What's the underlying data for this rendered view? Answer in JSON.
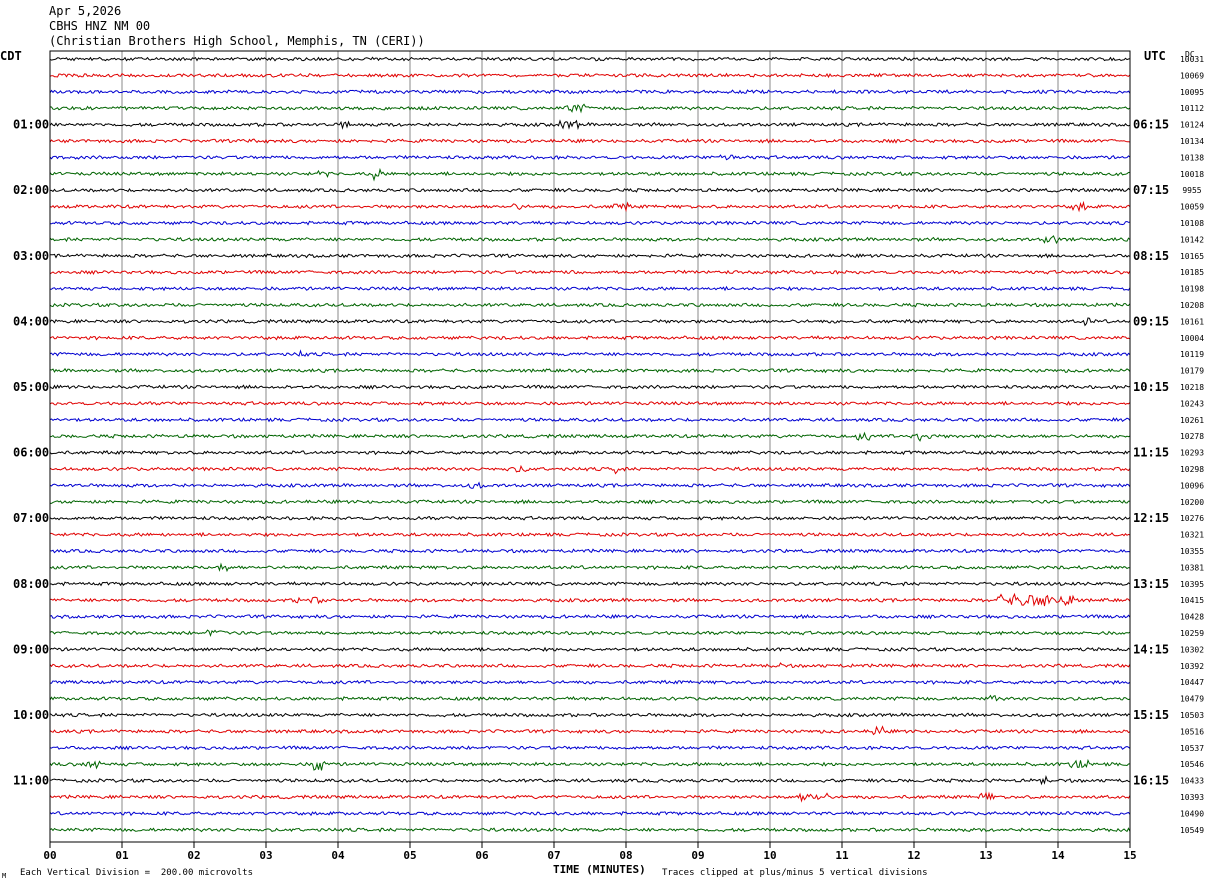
{
  "header": {
    "date": "Apr 5,2026",
    "station": "CBHS HNZ NM 00",
    "location": "(Christian Brothers High School, Memphis, TN (CERI))"
  },
  "axes": {
    "left_tz": "CDT",
    "right_tz": "UTC",
    "dc_label": "DC",
    "x_label": "TIME (MINUTES)"
  },
  "footer": {
    "scale_note": "Each Vertical Division =  200.00 microvolts",
    "clip_note": "Traces clipped at plus/minus 5 vertical divisions",
    "corner_mark": "M"
  },
  "colors": {
    "cycle": [
      "#000000",
      "#e00000",
      "#0000d0",
      "#006400"
    ],
    "grid": "#888888"
  },
  "chart_data": {
    "type": "line",
    "title": "",
    "xlabel": "TIME (MINUTES)",
    "xlim": [
      0,
      15
    ],
    "x_ticks": [
      "00",
      "01",
      "02",
      "03",
      "04",
      "05",
      "06",
      "07",
      "08",
      "09",
      "10",
      "11",
      "12",
      "13",
      "14",
      "15"
    ],
    "left_hour_labels": [
      "01:00",
      "02:00",
      "03:00",
      "04:00",
      "05:00",
      "06:00",
      "07:00",
      "08:00",
      "09:00",
      "10:00",
      "11:00"
    ],
    "right_hour_labels": [
      "06:15",
      "07:15",
      "08:15",
      "09:15",
      "10:15",
      "11:15",
      "12:15",
      "13:15",
      "14:15",
      "15:15",
      "16:15"
    ],
    "traces": 48,
    "minutes_per_trace": 15,
    "dc_offsets": [
      10031,
      10069,
      10095,
      10112,
      10124,
      10134,
      10138,
      10018,
      9955,
      10059,
      10108,
      10142,
      10165,
      10185,
      10198,
      10208,
      10161,
      10004,
      10119,
      10179,
      10218,
      10243,
      10261,
      10278,
      10293,
      10298,
      10096,
      10200,
      10276,
      10321,
      10355,
      10381,
      10395,
      10415,
      10428,
      10259,
      10302,
      10392,
      10447,
      10479,
      10503,
      10516,
      10537,
      10546,
      10433,
      10393,
      10490,
      10549
    ],
    "events": [
      {
        "trace": 3,
        "minute": 7.3,
        "amp": 4,
        "dur": 0.3
      },
      {
        "trace": 4,
        "minute": 4.1,
        "amp": 4,
        "dur": 0.15
      },
      {
        "trace": 4,
        "minute": 7.2,
        "amp": 4,
        "dur": 0.3
      },
      {
        "trace": 5,
        "minute": 2.8,
        "amp": 3,
        "dur": 0.1
      },
      {
        "trace": 6,
        "minute": 9.4,
        "amp": 4,
        "dur": 0.2
      },
      {
        "trace": 7,
        "minute": 3.8,
        "amp": 3,
        "dur": 0.15
      },
      {
        "trace": 7,
        "minute": 4.55,
        "amp": 6,
        "dur": 0.15
      },
      {
        "trace": 9,
        "minute": 6.5,
        "amp": 3,
        "dur": 0.2
      },
      {
        "trace": 9,
        "minute": 7.9,
        "amp": 4,
        "dur": 0.25
      },
      {
        "trace": 9,
        "minute": 14.3,
        "amp": 4,
        "dur": 0.2
      },
      {
        "trace": 11,
        "minute": 13.9,
        "amp": 4,
        "dur": 0.2
      },
      {
        "trace": 13,
        "minute": 7.3,
        "amp": 3,
        "dur": 0.1
      },
      {
        "trace": 16,
        "minute": 14.4,
        "amp": 6,
        "dur": 0.08
      },
      {
        "trace": 18,
        "minute": 3.5,
        "amp": 4,
        "dur": 0.1
      },
      {
        "trace": 23,
        "minute": 11.3,
        "amp": 4,
        "dur": 0.2
      },
      {
        "trace": 23,
        "minute": 12.1,
        "amp": 5,
        "dur": 0.3
      },
      {
        "trace": 25,
        "minute": 6.5,
        "amp": 3,
        "dur": 0.3
      },
      {
        "trace": 25,
        "minute": 7.9,
        "amp": 7,
        "dur": 0.1
      },
      {
        "trace": 26,
        "minute": 5.9,
        "amp": 3,
        "dur": 0.2
      },
      {
        "trace": 31,
        "minute": 2.4,
        "amp": 4,
        "dur": 0.15
      },
      {
        "trace": 33,
        "minute": 3.6,
        "amp": 3,
        "dur": 0.4
      },
      {
        "trace": 33,
        "minute": 13.7,
        "amp": 6,
        "dur": 1.1
      },
      {
        "trace": 35,
        "minute": 2.3,
        "amp": 3,
        "dur": 0.3
      },
      {
        "trace": 37,
        "minute": 10.1,
        "amp": 4,
        "dur": 0.1
      },
      {
        "trace": 39,
        "minute": 13.1,
        "amp": 4,
        "dur": 0.1
      },
      {
        "trace": 41,
        "minute": 11.5,
        "amp": 5,
        "dur": 0.15
      },
      {
        "trace": 43,
        "minute": 0.6,
        "amp": 4,
        "dur": 0.2
      },
      {
        "trace": 43,
        "minute": 3.75,
        "amp": 8,
        "dur": 0.2
      },
      {
        "trace": 43,
        "minute": 14.3,
        "amp": 4,
        "dur": 0.3
      },
      {
        "trace": 44,
        "minute": 13.8,
        "amp": 4,
        "dur": 0.1
      },
      {
        "trace": 45,
        "minute": 10.6,
        "amp": 4,
        "dur": 0.4
      },
      {
        "trace": 45,
        "minute": 13.0,
        "amp": 4,
        "dur": 0.2
      }
    ]
  }
}
